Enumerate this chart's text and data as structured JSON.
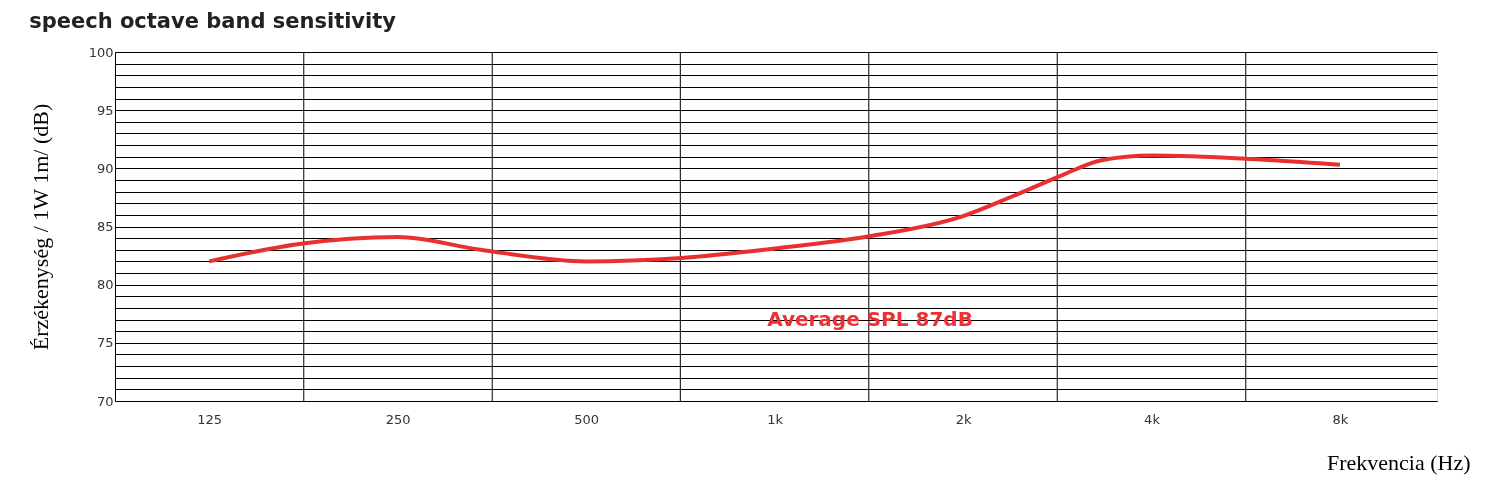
{
  "chart_data": {
    "type": "line",
    "title": "speech octave band sensitivity",
    "xlabel": "Frekvencia (Hz)",
    "ylabel": "Érzékenység / 1W 1m/  (dB)",
    "log": "x",
    "x": [
      125,
      174,
      250,
      339,
      500,
      711,
      1000,
      1433,
      2000,
      2400,
      2876,
      3330,
      4000,
      5770,
      8000
    ],
    "series": [
      {
        "color": "#e8312f",
        "values": [
          82.0,
          83.5,
          84.1,
          83.0,
          82.0,
          82.3,
          83.1,
          84.2,
          85.9,
          87.6,
          89.4,
          90.7,
          91.1,
          90.8,
          90.3
        ]
      }
    ],
    "xlim": [
      88.4,
      11430
    ],
    "xticks": [
      125,
      250,
      500,
      {
        "value": 1000,
        "label": "1k"
      },
      {
        "value": 2000,
        "label": "2k"
      },
      {
        "value": 4000,
        "label": "4k"
      },
      {
        "value": 8000,
        "label": "8k"
      }
    ],
    "ylim": [
      70,
      100
    ],
    "yticks": [
      70,
      {
        "value": 71,
        "label": null
      },
      {
        "value": 72,
        "label": null
      },
      {
        "value": 73,
        "label": null
      },
      {
        "value": 74,
        "label": null
      },
      75,
      {
        "value": 76,
        "label": null
      },
      {
        "value": 77,
        "label": null
      },
      {
        "value": 78,
        "label": null
      },
      {
        "value": 79,
        "label": null
      },
      80,
      {
        "value": 81,
        "label": null
      },
      {
        "value": 82,
        "label": null
      },
      {
        "value": 83,
        "label": null
      },
      {
        "value": 84,
        "label": null
      },
      85,
      {
        "value": 86,
        "label": null
      },
      {
        "value": 87,
        "label": null
      },
      {
        "value": 88,
        "label": null
      },
      {
        "value": 89,
        "label": null
      },
      90,
      {
        "value": 91,
        "label": null
      },
      {
        "value": 92,
        "label": null
      },
      {
        "value": 93,
        "label": null
      },
      {
        "value": 94,
        "label": null
      },
      95,
      {
        "value": 96,
        "label": null
      },
      {
        "value": 97,
        "label": null
      },
      {
        "value": 98,
        "label": null
      },
      {
        "value": 99,
        "label": null
      },
      100
    ],
    "grid": "y",
    "ref_lines": [
      {
        "axis": "x",
        "value": 177,
        "color": "#000000"
      },
      {
        "axis": "x",
        "value": 354,
        "color": "#000000"
      },
      {
        "axis": "x",
        "value": 707,
        "color": "#000000"
      },
      {
        "axis": "x",
        "value": 1414,
        "color": "#000000"
      },
      {
        "axis": "x",
        "value": 2828,
        "color": "#000000"
      },
      {
        "axis": "x",
        "value": 5657,
        "color": "#000000"
      }
    ],
    "annotations": [
      "Average SPL 87dB"
    ],
    "marker": "none",
    "line_style": "solid"
  }
}
